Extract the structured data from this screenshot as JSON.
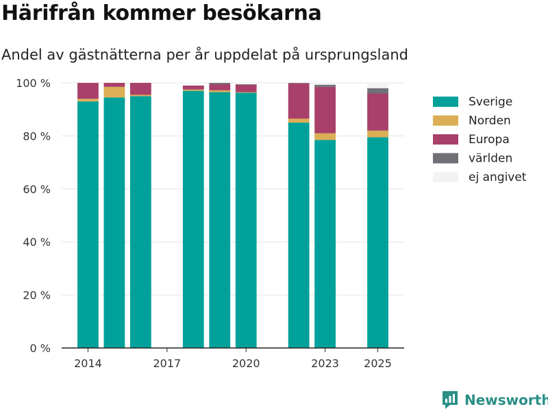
{
  "header": {
    "title": "Härifrån kommer besökarna",
    "subtitle": "Andel av gästnätterna per år uppdelat på ursprungsland"
  },
  "colors": {
    "Sverige": "#00a19a",
    "Norden": "#dcae56",
    "Europa": "#a8406a",
    "världen": "#707077",
    "ej angivet": "#f3f3f3"
  },
  "chart_data": {
    "type": "bar",
    "stacked": true,
    "title": "Härifrån kommer besökarna",
    "subtitle": "Andel av gästnätterna per år uppdelat på ursprungsland",
    "xlim": [
      2013,
      2026
    ],
    "x_ticks": [
      2014,
      2017,
      2020,
      2023,
      2025
    ],
    "ylim": [
      0,
      100
    ],
    "y_ticks": [
      0,
      20,
      40,
      60,
      80,
      100
    ],
    "y_tick_labels": [
      "0 %",
      "20 %",
      "40 %",
      "60 %",
      "80 %",
      "100 %"
    ],
    "grid": true,
    "legend_position": "right",
    "x": [
      2014,
      2015,
      2016,
      2018,
      2019,
      2020,
      2022,
      2023,
      2025
    ],
    "series": [
      {
        "name": "Sverige",
        "values": [
          93.0,
          94.5,
          95.0,
          97.0,
          96.5,
          96.3,
          85.0,
          78.5,
          79.5
        ]
      },
      {
        "name": "Norden",
        "values": [
          1.0,
          4.0,
          0.5,
          0.5,
          0.7,
          0.2,
          1.5,
          2.5,
          2.5
        ]
      },
      {
        "name": "Europa",
        "values": [
          6.0,
          1.5,
          4.5,
          1.5,
          2.3,
          2.8,
          13.3,
          17.5,
          14.0
        ]
      },
      {
        "name": "världen",
        "values": [
          0.0,
          0.0,
          0.0,
          0.0,
          0.5,
          0.2,
          0.2,
          0.8,
          2.0
        ]
      },
      {
        "name": "ej angivet",
        "values": [
          0.0,
          0.0,
          0.0,
          0.0,
          0.0,
          0.0,
          0.0,
          0.7,
          2.0
        ]
      }
    ]
  },
  "brand": {
    "name": "Newsworthy"
  }
}
